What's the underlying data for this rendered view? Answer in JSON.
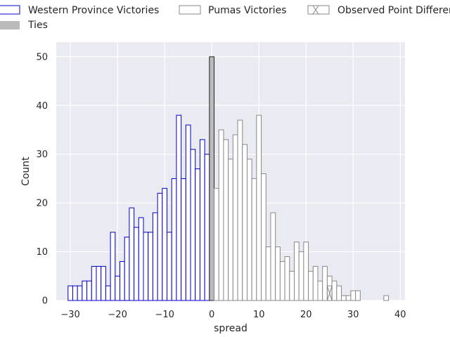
{
  "chart_data": {
    "type": "bar",
    "xlabel": "spread",
    "ylabel": "Count",
    "xlim": [
      -33,
      41
    ],
    "ylim": [
      0,
      53
    ],
    "xticks": [
      -30,
      -20,
      -10,
      0,
      10,
      20,
      30,
      40
    ],
    "yticks": [
      0,
      10,
      20,
      30,
      40,
      50
    ],
    "grid": true,
    "legend_position": "top",
    "background_color": "#eaeaf2",
    "bin_width": 1,
    "series": [
      {
        "name": "Western Province Victories",
        "color": "#0000cc",
        "fill": "#ffffff",
        "x": [
          -30,
          -29,
          -28,
          -27,
          -26,
          -25,
          -24,
          -23,
          -22,
          -21,
          -20,
          -19,
          -18,
          -17,
          -16,
          -15,
          -14,
          -13,
          -12,
          -11,
          -10,
          -9,
          -8,
          -7,
          -6,
          -5,
          -4,
          -3,
          -2,
          -1
        ],
        "values": [
          3,
          3,
          3,
          4,
          4,
          7,
          7,
          7,
          3,
          14,
          5,
          8,
          13,
          19,
          15,
          17,
          14,
          14,
          18,
          22,
          23,
          14,
          25,
          38,
          25,
          36,
          31,
          27,
          33,
          30
        ]
      },
      {
        "name": "Ties",
        "color": "#222222",
        "fill": "#bbbbbb",
        "x": [
          0
        ],
        "values": [
          50
        ]
      },
      {
        "name": "Pumas Victories",
        "color": "#888888",
        "fill": "#ffffff",
        "x": [
          1,
          2,
          3,
          4,
          5,
          6,
          7,
          8,
          9,
          10,
          11,
          12,
          13,
          14,
          15,
          16,
          17,
          18,
          19,
          20,
          21,
          22,
          23,
          24,
          25,
          26,
          27,
          28,
          29,
          30,
          31,
          37
        ],
        "values": [
          23,
          35,
          33,
          29,
          34,
          37,
          32,
          29,
          25,
          38,
          26,
          11,
          18,
          11,
          8,
          9,
          6,
          12,
          10,
          12,
          6,
          7,
          4,
          7,
          5,
          4,
          3,
          1,
          1,
          2,
          2,
          1
        ]
      },
      {
        "name": "Observed Point Differen",
        "color": "#888888",
        "fill": "none",
        "hatch": "x",
        "x": [
          25
        ],
        "values": [
          3
        ]
      }
    ]
  }
}
